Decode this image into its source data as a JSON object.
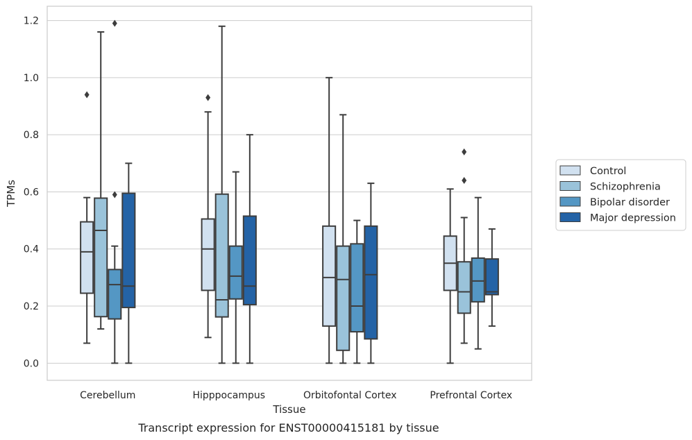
{
  "caption": "Transcript expression for ENST00000415181 by tissue",
  "chart_data": {
    "type": "box",
    "title": "",
    "xlabel": "Tissue",
    "ylabel": "TPMs",
    "ylim": [
      -0.06,
      1.25
    ],
    "yticks": [
      0.0,
      0.2,
      0.4,
      0.6,
      0.8,
      1.0,
      1.2
    ],
    "ytick_labels": [
      "0.0",
      "0.2",
      "0.4",
      "0.6",
      "0.8",
      "1.0",
      "1.2"
    ],
    "grid": "horizontal",
    "legend_position": "right-outside",
    "categories": [
      "Cerebellum",
      "Hipppocampus",
      "Orbitofontal Cortex",
      "Prefrontal Cortex"
    ],
    "series": [
      {
        "name": "Control",
        "color": "#d1e1f0",
        "boxes": [
          {
            "whislo": 0.07,
            "q1": 0.245,
            "med": 0.39,
            "q3": 0.495,
            "whishi": 0.58,
            "fliers": [
              0.94
            ]
          },
          {
            "whislo": 0.09,
            "q1": 0.255,
            "med": 0.4,
            "q3": 0.505,
            "whishi": 0.88,
            "fliers": [
              0.93
            ]
          },
          {
            "whislo": 0.0,
            "q1": 0.13,
            "med": 0.3,
            "q3": 0.48,
            "whishi": 1.0,
            "fliers": []
          },
          {
            "whislo": 0.0,
            "q1": 0.255,
            "med": 0.35,
            "q3": 0.445,
            "whishi": 0.61,
            "fliers": []
          }
        ]
      },
      {
        "name": "Schizophrenia",
        "color": "#9ac3da",
        "boxes": [
          {
            "whislo": 0.12,
            "q1": 0.163,
            "med": 0.465,
            "q3": 0.578,
            "whishi": 1.16,
            "fliers": []
          },
          {
            "whislo": 0.0,
            "q1": 0.162,
            "med": 0.222,
            "q3": 0.592,
            "whishi": 1.18,
            "fliers": []
          },
          {
            "whislo": 0.0,
            "q1": 0.045,
            "med": 0.293,
            "q3": 0.41,
            "whishi": 0.87,
            "fliers": []
          },
          {
            "whislo": 0.07,
            "q1": 0.175,
            "med": 0.25,
            "q3": 0.355,
            "whishi": 0.51,
            "fliers": [
              0.64,
              0.74
            ]
          }
        ]
      },
      {
        "name": "Bipolar disorder",
        "color": "#5497c4",
        "boxes": [
          {
            "whislo": 0.0,
            "q1": 0.155,
            "med": 0.275,
            "q3": 0.328,
            "whishi": 0.41,
            "fliers": [
              0.59,
              1.19
            ]
          },
          {
            "whislo": 0.0,
            "q1": 0.225,
            "med": 0.305,
            "q3": 0.41,
            "whishi": 0.67,
            "fliers": []
          },
          {
            "whislo": 0.0,
            "q1": 0.11,
            "med": 0.2,
            "q3": 0.418,
            "whishi": 0.5,
            "fliers": []
          },
          {
            "whislo": 0.05,
            "q1": 0.215,
            "med": 0.288,
            "q3": 0.368,
            "whishi": 0.58,
            "fliers": []
          }
        ]
      },
      {
        "name": "Major depression",
        "color": "#2463a6",
        "boxes": [
          {
            "whislo": 0.0,
            "q1": 0.195,
            "med": 0.27,
            "q3": 0.595,
            "whishi": 0.7,
            "fliers": []
          },
          {
            "whislo": 0.0,
            "q1": 0.205,
            "med": 0.27,
            "q3": 0.515,
            "whishi": 0.8,
            "fliers": []
          },
          {
            "whislo": 0.0,
            "q1": 0.085,
            "med": 0.31,
            "q3": 0.48,
            "whishi": 0.63,
            "fliers": []
          },
          {
            "whislo": 0.13,
            "q1": 0.24,
            "med": 0.25,
            "q3": 0.365,
            "whishi": 0.47,
            "fliers": []
          }
        ]
      }
    ]
  }
}
